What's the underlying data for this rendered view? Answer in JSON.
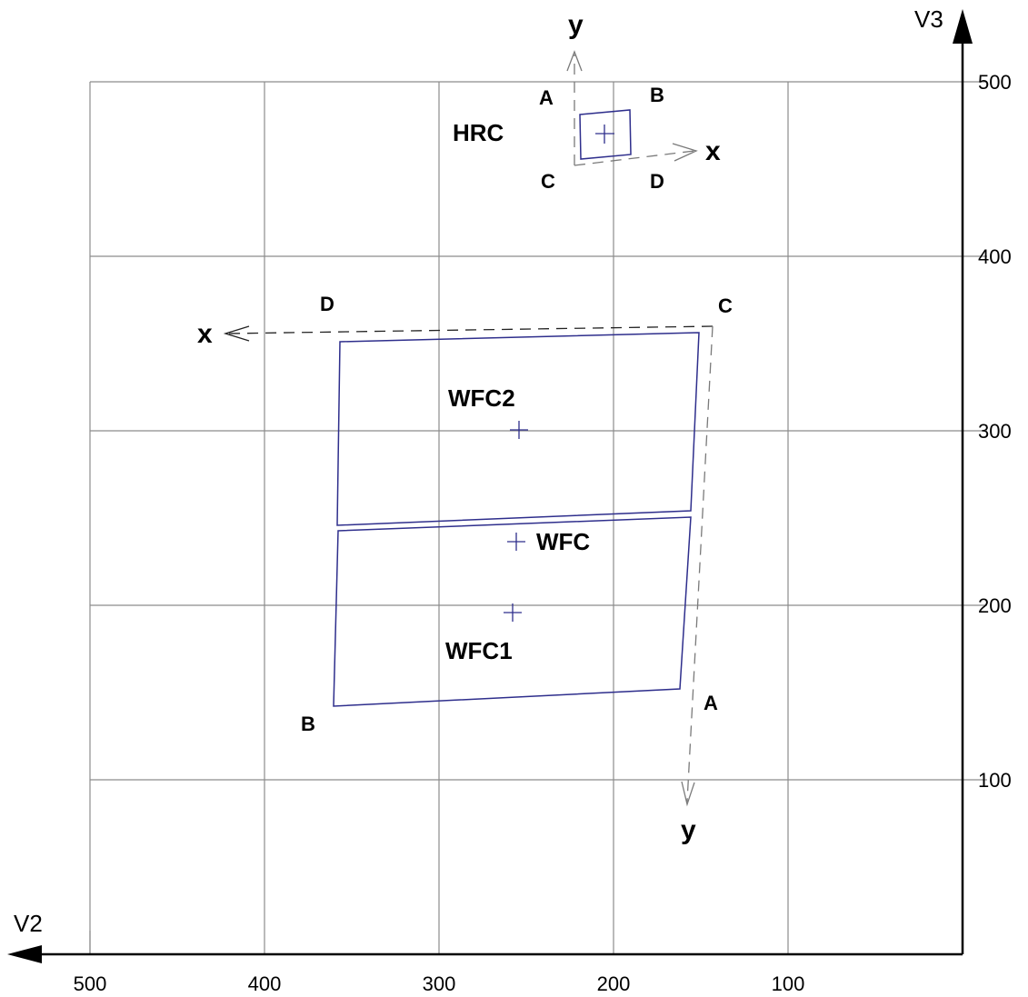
{
  "axes": {
    "v2": {
      "title": "V2",
      "ticks": [
        "500",
        "400",
        "300",
        "200",
        "100"
      ]
    },
    "v3": {
      "title": "V3",
      "ticks": [
        "500",
        "400",
        "300",
        "200",
        "100"
      ]
    }
  },
  "detectors": {
    "wfc2": {
      "label": "WFC2"
    },
    "wfc1": {
      "label": "WFC1"
    },
    "wfc": {
      "label": "WFC"
    },
    "hrc": {
      "label": "HRC"
    }
  },
  "wfc_corners": {
    "a": "A",
    "b": "B",
    "c": "C",
    "d": "D"
  },
  "wfc_axes": {
    "x": "x",
    "y": "y"
  },
  "hrc_corners": {
    "a": "A",
    "b": "B",
    "c": "C",
    "d": "D"
  },
  "hrc_axes": {
    "x": "x",
    "y": "y"
  },
  "colors": {
    "outline": "#2e2e8c",
    "grid": "#8c8c8c"
  }
}
